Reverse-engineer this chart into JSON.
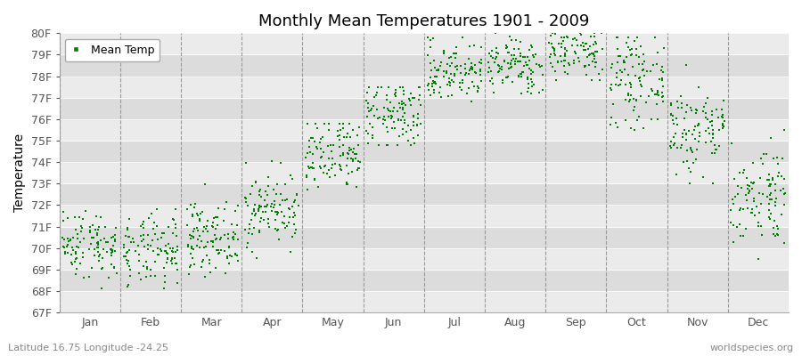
{
  "title": "Monthly Mean Temperatures 1901 - 2009",
  "ylabel": "Temperature",
  "xlabel_labels": [
    "Jan",
    "Feb",
    "Mar",
    "Apr",
    "May",
    "Jun",
    "Jul",
    "Aug",
    "Sep",
    "Oct",
    "Nov",
    "Dec"
  ],
  "ytick_labels": [
    "67F",
    "68F",
    "69F",
    "70F",
    "71F",
    "72F",
    "73F",
    "74F",
    "75F",
    "76F",
    "77F",
    "78F",
    "79F",
    "80F"
  ],
  "ytick_values": [
    67,
    68,
    69,
    70,
    71,
    72,
    73,
    74,
    75,
    76,
    77,
    78,
    79,
    80
  ],
  "ylim_min": 67,
  "ylim_max": 80,
  "dot_color": "#008000",
  "bg_light": "#ebebeb",
  "bg_dark": "#dcdcdc",
  "legend_label": "Mean Temp",
  "subtitle_left": "Latitude 16.75 Longitude -24.25",
  "subtitle_right": "worldspecies.org",
  "monthly_means": [
    70.2,
    69.8,
    70.5,
    71.8,
    74.2,
    76.2,
    78.2,
    78.5,
    79.2,
    77.8,
    75.5,
    72.5
  ],
  "monthly_stds": [
    0.8,
    0.85,
    0.8,
    0.85,
    0.9,
    0.85,
    0.7,
    0.65,
    0.7,
    1.0,
    1.1,
    1.2
  ],
  "monthly_mins": [
    67.5,
    67.2,
    68.5,
    69.5,
    72.5,
    74.8,
    76.8,
    77.2,
    77.8,
    75.5,
    73.0,
    69.5
  ],
  "monthly_maxs": [
    72.5,
    72.3,
    73.5,
    74.5,
    75.8,
    77.5,
    79.8,
    80.2,
    81.0,
    79.8,
    78.8,
    75.5
  ],
  "n_years": 109,
  "seed": 42,
  "dot_size": 4,
  "title_fontsize": 13,
  "axis_label_fontsize": 10,
  "tick_fontsize": 9,
  "legend_fontsize": 9
}
